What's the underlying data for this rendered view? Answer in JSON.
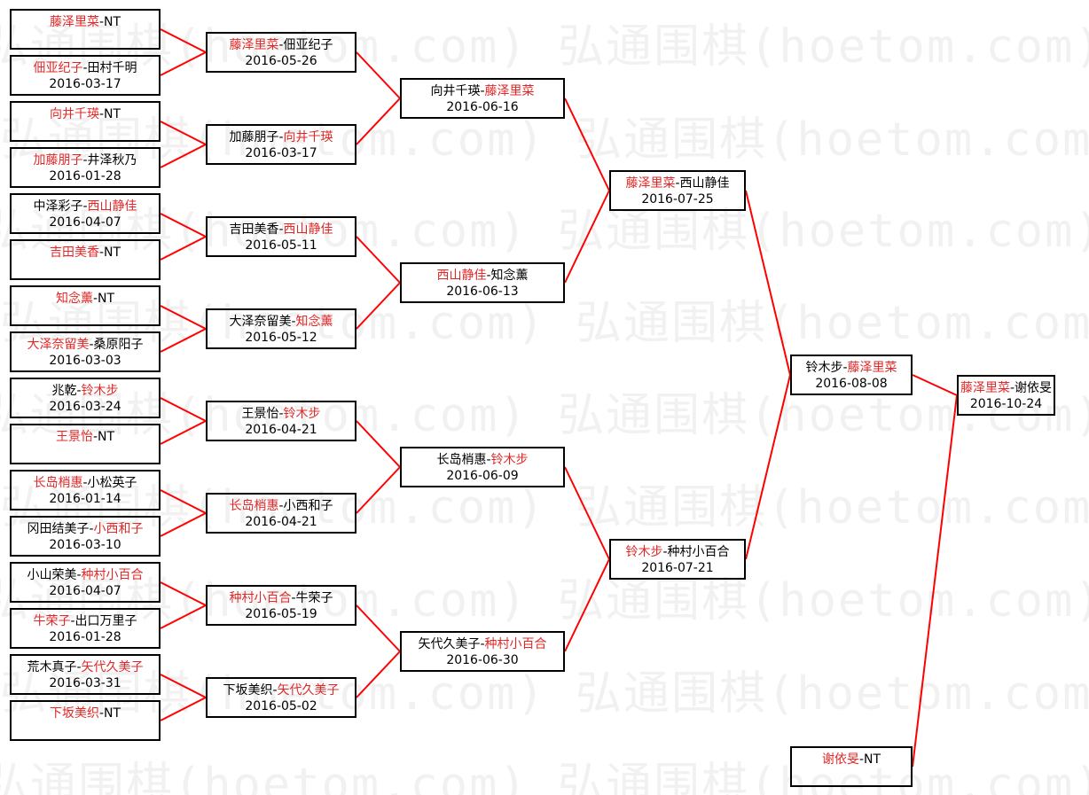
{
  "watermark": "弘通围棋(hoetom.com)",
  "colors": {
    "winner": "#e02828",
    "connector": "#ff0000",
    "border": "#000000"
  },
  "separator": "-",
  "rounds": [
    [
      {
        "p1": "藤泽里菜",
        "p2": "NT",
        "winner": 1,
        "date": ""
      },
      {
        "p1": "佃亚纪子",
        "p2": "田村千明",
        "winner": 1,
        "date": "2016-03-17"
      },
      {
        "p1": "向井千瑛",
        "p2": "NT",
        "winner": 1,
        "date": ""
      },
      {
        "p1": "加藤朋子",
        "p2": "井泽秋乃",
        "winner": 1,
        "date": "2016-01-28"
      },
      {
        "p1": "中泽彩子",
        "p2": "西山静佳",
        "winner": 2,
        "date": "2016-04-07"
      },
      {
        "p1": "吉田美香",
        "p2": "NT",
        "winner": 1,
        "date": ""
      },
      {
        "p1": "知念薰",
        "p2": "NT",
        "winner": 1,
        "date": ""
      },
      {
        "p1": "大泽奈留美",
        "p2": "桑原阳子",
        "winner": 1,
        "date": "2016-03-03"
      },
      {
        "p1": "兆乾",
        "p2": "铃木步",
        "winner": 2,
        "date": "2016-03-24"
      },
      {
        "p1": "王景怡",
        "p2": "NT",
        "winner": 1,
        "date": ""
      },
      {
        "p1": "长岛梢惠",
        "p2": "小松英子",
        "winner": 1,
        "date": "2016-01-14"
      },
      {
        "p1": "冈田结美子",
        "p2": "小西和子",
        "winner": 2,
        "date": "2016-03-10"
      },
      {
        "p1": "小山荣美",
        "p2": "种村小百合",
        "winner": 2,
        "date": "2016-04-07"
      },
      {
        "p1": "牛荣子",
        "p2": "出口万里子",
        "winner": 1,
        "date": "2016-01-28"
      },
      {
        "p1": "荒木真子",
        "p2": "矢代久美子",
        "winner": 2,
        "date": "2016-03-31"
      },
      {
        "p1": "下坂美织",
        "p2": "NT",
        "winner": 1,
        "date": ""
      }
    ],
    [
      {
        "p1": "藤泽里菜",
        "p2": "佃亚纪子",
        "winner": 1,
        "date": "2016-05-26"
      },
      {
        "p1": "加藤朋子",
        "p2": "向井千瑛",
        "winner": 2,
        "date": "2016-03-17"
      },
      {
        "p1": "吉田美香",
        "p2": "西山静佳",
        "winner": 2,
        "date": "2016-05-11"
      },
      {
        "p1": "大泽奈留美",
        "p2": "知念薰",
        "winner": 2,
        "date": "2016-05-12"
      },
      {
        "p1": "王景怡",
        "p2": "铃木步",
        "winner": 2,
        "date": "2016-04-21"
      },
      {
        "p1": "长岛梢惠",
        "p2": "小西和子",
        "winner": 1,
        "date": "2016-04-21"
      },
      {
        "p1": "种村小百合",
        "p2": "牛荣子",
        "winner": 1,
        "date": "2016-05-19"
      },
      {
        "p1": "下坂美织",
        "p2": "矢代久美子",
        "winner": 2,
        "date": "2016-05-02"
      }
    ],
    [
      {
        "p1": "向井千瑛",
        "p2": "藤泽里菜",
        "winner": 2,
        "date": "2016-06-16"
      },
      {
        "p1": "西山静佳",
        "p2": "知念薰",
        "winner": 1,
        "date": "2016-06-13"
      },
      {
        "p1": "长岛梢惠",
        "p2": "铃木步",
        "winner": 2,
        "date": "2016-06-09"
      },
      {
        "p1": "矢代久美子",
        "p2": "种村小百合",
        "winner": 2,
        "date": "2016-06-30"
      }
    ],
    [
      {
        "p1": "藤泽里菜",
        "p2": "西山静佳",
        "winner": 1,
        "date": "2016-07-25"
      },
      {
        "p1": "铃木步",
        "p2": "种村小百合",
        "winner": 1,
        "date": "2016-07-21"
      }
    ],
    [
      {
        "p1": "铃木步",
        "p2": "藤泽里菜",
        "winner": 2,
        "date": "2016-08-08"
      }
    ],
    [
      {
        "p1": "藤泽里菜",
        "p2": "谢依旻",
        "winner": 1,
        "date": "2016-10-24"
      }
    ]
  ],
  "bye": {
    "p1": "谢依旻",
    "p2": "NT",
    "winner": 1,
    "date": ""
  }
}
